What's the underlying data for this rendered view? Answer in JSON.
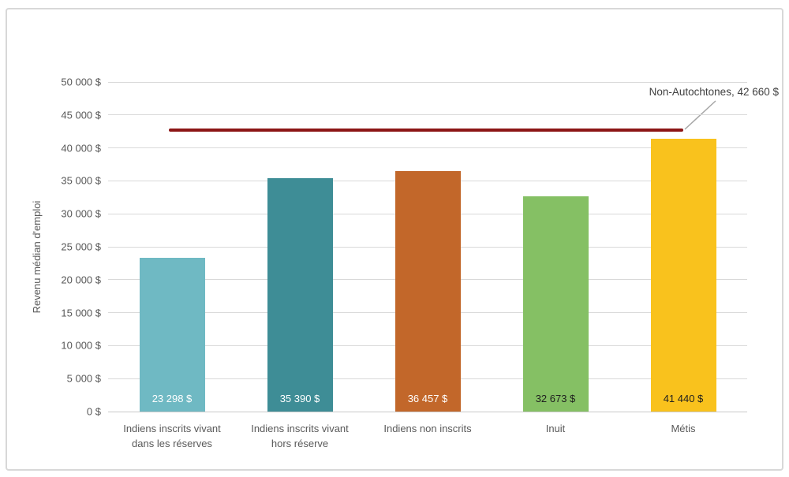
{
  "chart_data": {
    "type": "bar",
    "title": "",
    "xlabel": "",
    "ylabel": "Revenu médian d'emploi",
    "categories": [
      "Indiens inscrits vivant dans les réserves",
      "Indiens inscrits vivant hors réserve",
      "Indiens non inscrits",
      "Inuit",
      "Métis"
    ],
    "values": [
      23298,
      35390,
      36457,
      32673,
      41440
    ],
    "bar_value_labels": [
      "23 298 $",
      "35 390 $",
      "36 457 $",
      "32 673 $",
      "41 440 $"
    ],
    "bar_colors": [
      "#6FB9C3",
      "#3E8D96",
      "#C2672A",
      "#85C064",
      "#F9C21D"
    ],
    "bar_label_text_colors": [
      "#FFFFFF",
      "#FFFFFF",
      "#FFFFFF",
      "#1F1F1F",
      "#1F1F1F"
    ],
    "ylim": [
      0,
      50000
    ],
    "ytick_step": 5000,
    "ytick_labels": [
      "0 $",
      "5 000 $",
      "10 000 $",
      "15 000 $",
      "20 000 $",
      "25 000 $",
      "30 000 $",
      "35 000 $",
      "40 000 $",
      "45 000 $",
      "50 000 $"
    ],
    "grid": true,
    "legend": "none",
    "reference_line": {
      "value": 42660,
      "label": "Non-Autochtones, 42 660 $",
      "color": "#8C1515"
    }
  },
  "styles": {
    "axis_text_color": "#595959",
    "gridline_color": "#D9D9D9",
    "axis_line_color": "#C9C9C9",
    "frame_border_color": "#D8D8D8",
    "leader_line_color": "#A6A6A6",
    "annotation_text_color": "#404040",
    "background_color": "#FFFFFF"
  }
}
